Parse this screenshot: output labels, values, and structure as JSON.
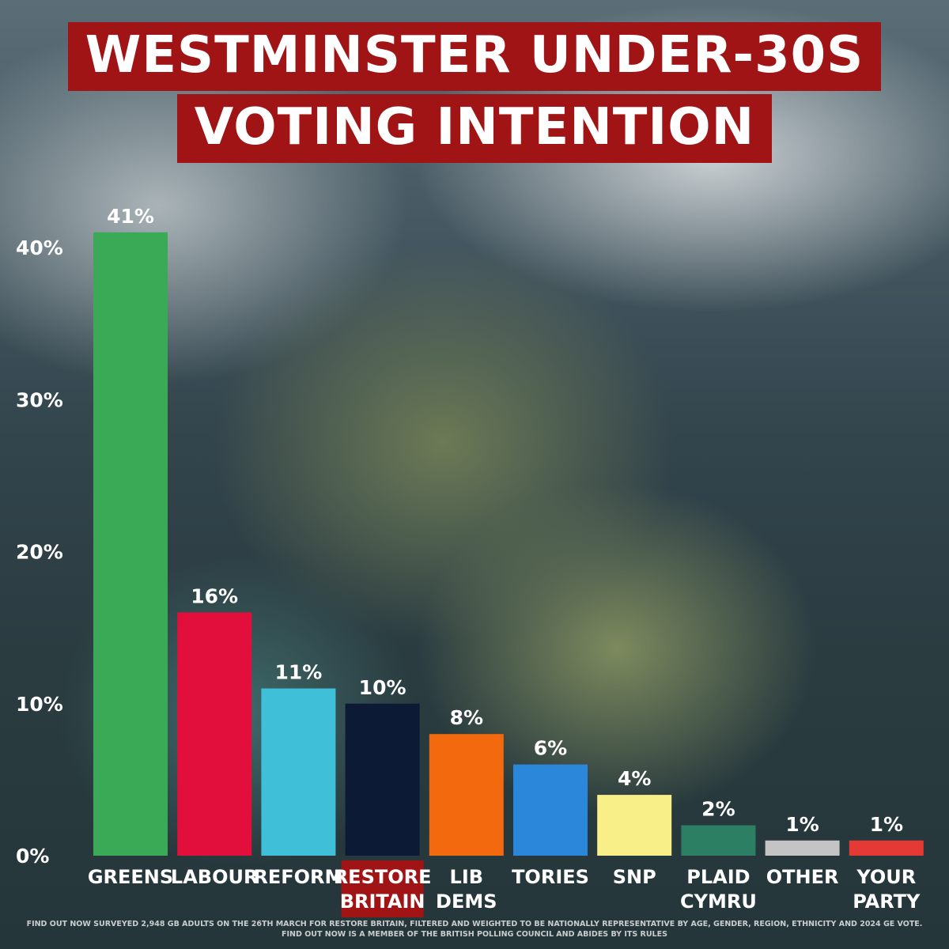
{
  "chart_data": {
    "type": "bar",
    "title_lines": [
      "WESTMINSTER UNDER-30S",
      "VOTING INTENTION"
    ],
    "ylim": [
      0,
      40
    ],
    "yticks": [
      "0%",
      "10%",
      "20%",
      "30%",
      "40%"
    ],
    "ytick_values": [
      0,
      10,
      20,
      30,
      40
    ],
    "grid": false,
    "bars": [
      {
        "label_lines": [
          "GREENS"
        ],
        "value": 41,
        "value_label": "41%",
        "color": "#3aaa56"
      },
      {
        "label_lines": [
          "LABOUR"
        ],
        "value": 16,
        "value_label": "16%",
        "color": "#e20f3c"
      },
      {
        "label_lines": [
          "REFORM"
        ],
        "value": 11,
        "value_label": "11%",
        "color": "#40c0d8"
      },
      {
        "label_lines": [
          "RESTORE",
          "BRITAIN"
        ],
        "value": 10,
        "value_label": "10%",
        "color": "#0c1a36",
        "highlighted": true,
        "highlight_color": "#a11416"
      },
      {
        "label_lines": [
          "LIB",
          "DEMS"
        ],
        "value": 8,
        "value_label": "8%",
        "color": "#f26a0d"
      },
      {
        "label_lines": [
          "TORIES"
        ],
        "value": 6,
        "value_label": "6%",
        "color": "#2b87d9"
      },
      {
        "label_lines": [
          "SNP"
        ],
        "value": 4,
        "value_label": "4%",
        "color": "#f8ef88"
      },
      {
        "label_lines": [
          "PLAID",
          "CYMRU"
        ],
        "value": 2,
        "value_label": "2%",
        "color": "#2d7f63"
      },
      {
        "label_lines": [
          "OTHER"
        ],
        "value": 1,
        "value_label": "1%",
        "color": "#c4c4c4"
      },
      {
        "label_lines": [
          "YOUR",
          "PARTY"
        ],
        "value": 1,
        "value_label": "1%",
        "color": "#e53935"
      }
    ]
  },
  "footnote": "Find out now surveyed 2,948 GB adults on the 26th March for Restore Britain, filtered and weighted to be nationally representative by age, gender, region, ethnicity and 2024 GE vote. Find out now is a member of the British Polling Council and abides by its rules"
}
